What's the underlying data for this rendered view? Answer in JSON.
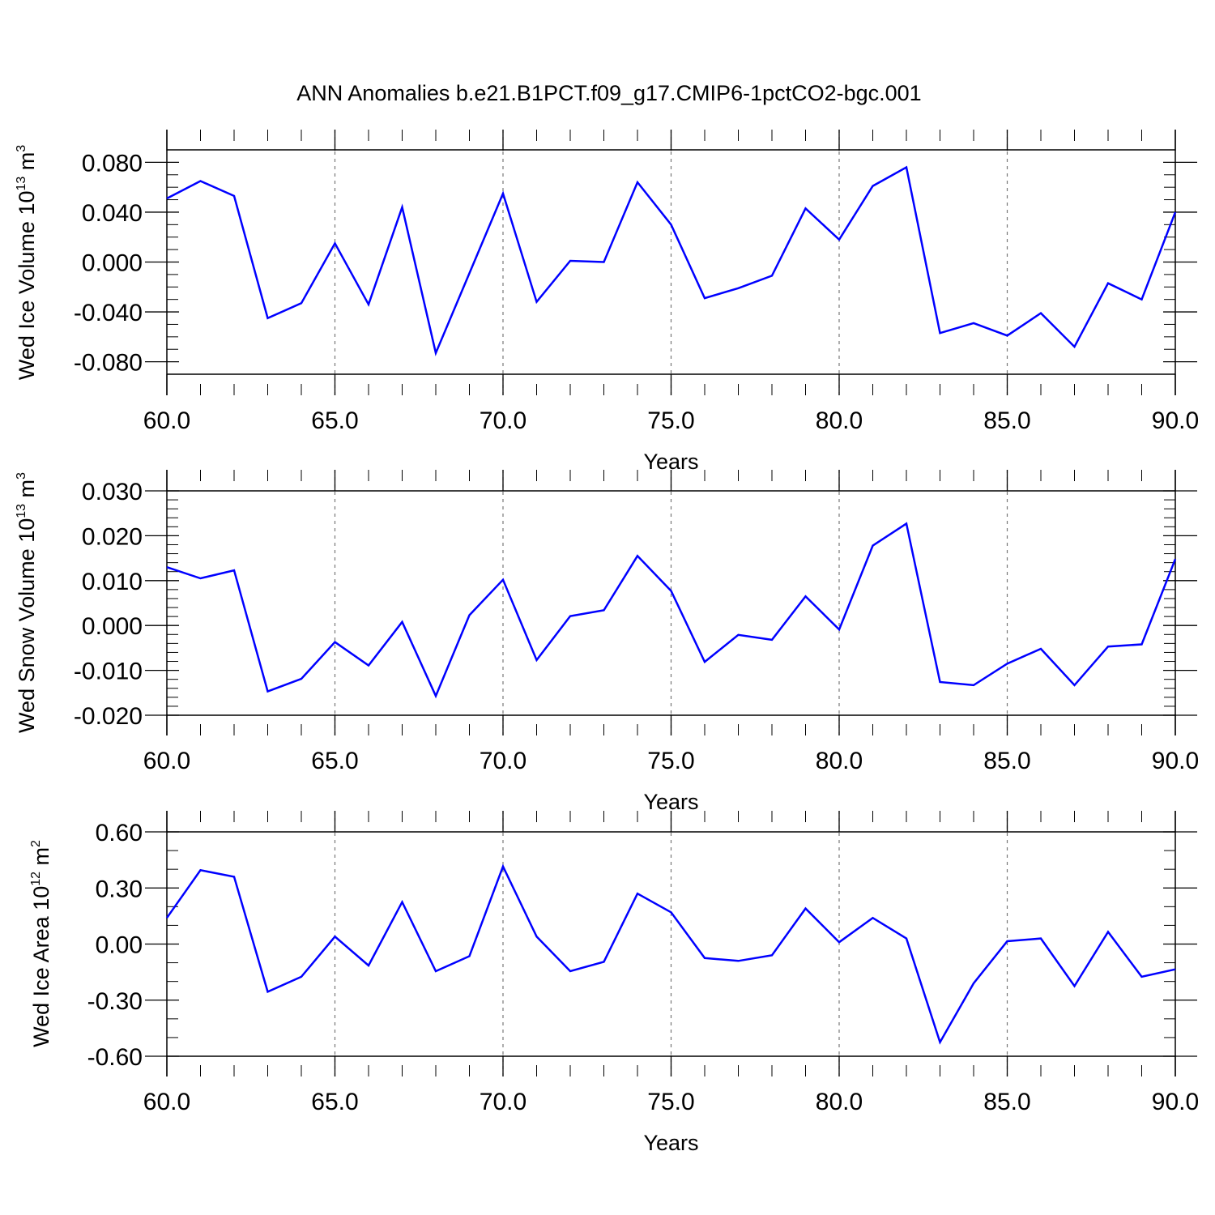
{
  "title": "ANN Anomalies b.e21.B1PCT.f09_g17.CMIP6-1pctCO2-bgc.001",
  "colors": {
    "line": "#0000ff",
    "axis": "#000000",
    "grid": "#777777"
  },
  "chart_data": [
    {
      "type": "line",
      "ylabel": {
        "main": "Wed Ice Volume 10",
        "exp": "13",
        "unit": " m",
        "unit_exp": "3"
      },
      "xlabel": "Years",
      "xlim": [
        60,
        90
      ],
      "ylim": [
        -0.09,
        0.09
      ],
      "x_ticks": [
        "60.0",
        "65.0",
        "70.0",
        "75.0",
        "80.0",
        "85.0",
        "90.0"
      ],
      "y_ticks": [
        "0.080",
        "0.040",
        "0.000",
        "-0.040",
        "-0.080"
      ],
      "y_tick_values": [
        0.08,
        0.04,
        0.0,
        -0.04,
        -0.08
      ],
      "y_minor_step": 0.01,
      "grid": "dashed vertical at major x ticks",
      "x": [
        60,
        61,
        62,
        63,
        64,
        65,
        66,
        67,
        68,
        69,
        70,
        71,
        72,
        73,
        74,
        75,
        76,
        77,
        78,
        79,
        80,
        81,
        82,
        83,
        84,
        85,
        86,
        87,
        88,
        89,
        90
      ],
      "values": [
        0.051,
        0.065,
        0.053,
        -0.045,
        -0.033,
        0.015,
        -0.034,
        0.044,
        -0.073,
        -0.009,
        0.055,
        -0.032,
        0.001,
        0.0,
        0.064,
        0.03,
        -0.029,
        -0.021,
        -0.011,
        0.043,
        0.018,
        0.061,
        0.076,
        -0.057,
        -0.049,
        -0.059,
        -0.041,
        -0.068,
        -0.017,
        -0.03,
        0.04
      ]
    },
    {
      "type": "line",
      "ylabel": {
        "main": "Wed Snow Volume 10",
        "exp": "13",
        "unit": " m",
        "unit_exp": "3"
      },
      "xlabel": "Years",
      "xlim": [
        60,
        90
      ],
      "ylim": [
        -0.02,
        0.03
      ],
      "x_ticks": [
        "60.0",
        "65.0",
        "70.0",
        "75.0",
        "80.0",
        "85.0",
        "90.0"
      ],
      "y_ticks": [
        "0.030",
        "0.020",
        "0.010",
        "0.000",
        "-0.010",
        "-0.020"
      ],
      "y_tick_values": [
        0.03,
        0.02,
        0.01,
        0.0,
        -0.01,
        -0.02
      ],
      "y_minor_step": 0.002,
      "grid": "dashed vertical at major x ticks",
      "x": [
        60,
        61,
        62,
        63,
        64,
        65,
        66,
        67,
        68,
        69,
        70,
        71,
        72,
        73,
        74,
        75,
        76,
        77,
        78,
        79,
        80,
        81,
        82,
        83,
        84,
        85,
        86,
        87,
        88,
        89,
        90
      ],
      "values": [
        0.013,
        0.0105,
        0.0123,
        -0.0147,
        -0.0119,
        -0.0037,
        -0.0089,
        0.0008,
        -0.0157,
        0.0023,
        0.0102,
        -0.0077,
        0.0021,
        0.0034,
        0.0155,
        0.0077,
        -0.0081,
        -0.0021,
        -0.0032,
        0.0065,
        -0.0009,
        0.0178,
        0.0227,
        -0.0126,
        -0.0133,
        -0.0085,
        -0.0052,
        -0.0133,
        -0.0047,
        -0.0042,
        0.0148
      ]
    },
    {
      "type": "line",
      "ylabel": {
        "main": "Wed Ice Area 10",
        "exp": "12",
        "unit": " m",
        "unit_exp": "2"
      },
      "xlabel": "Years",
      "xlim": [
        60,
        90
      ],
      "ylim": [
        -0.6,
        0.6
      ],
      "x_ticks": [
        "60.0",
        "65.0",
        "70.0",
        "75.0",
        "80.0",
        "85.0",
        "90.0"
      ],
      "y_ticks": [
        "0.60",
        "0.30",
        "0.00",
        "-0.30",
        "-0.60"
      ],
      "y_tick_values": [
        0.6,
        0.3,
        0.0,
        -0.3,
        -0.6
      ],
      "y_minor_step": 0.1,
      "grid": "dashed vertical at major x ticks",
      "x": [
        60,
        61,
        62,
        63,
        64,
        65,
        66,
        67,
        68,
        69,
        70,
        71,
        72,
        73,
        74,
        75,
        76,
        77,
        78,
        79,
        80,
        81,
        82,
        83,
        84,
        85,
        86,
        87,
        88,
        89,
        90
      ],
      "values": [
        0.14,
        0.395,
        0.36,
        -0.255,
        -0.175,
        0.04,
        -0.115,
        0.225,
        -0.145,
        -0.065,
        0.415,
        0.04,
        -0.145,
        -0.095,
        0.27,
        0.17,
        -0.075,
        -0.09,
        -0.06,
        0.19,
        0.01,
        0.14,
        0.03,
        -0.525,
        -0.21,
        0.015,
        0.03,
        -0.225,
        0.065,
        -0.175,
        -0.135
      ]
    }
  ]
}
